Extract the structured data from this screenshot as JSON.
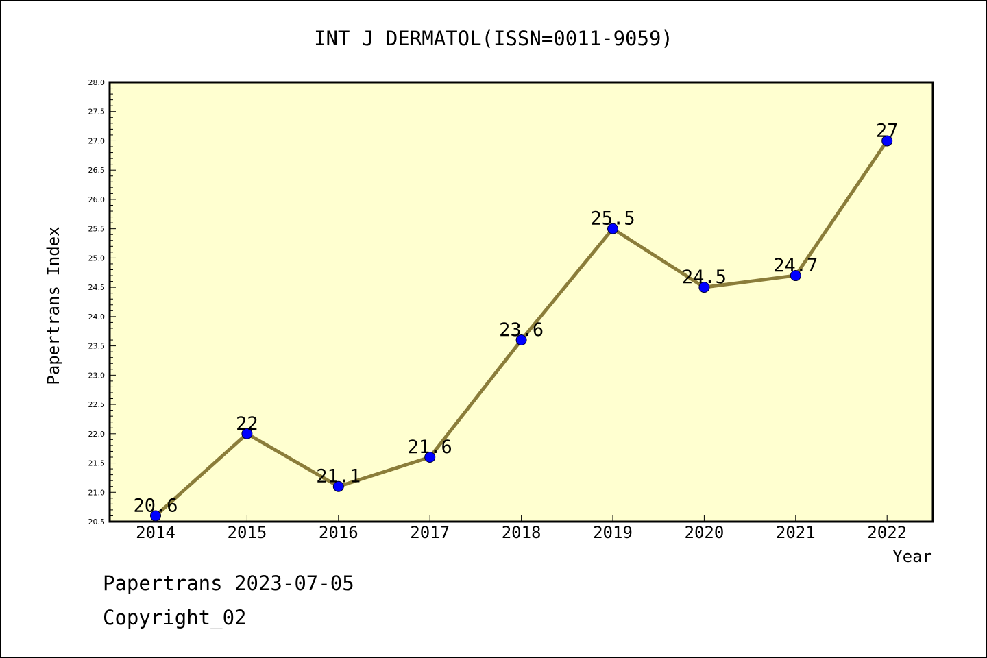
{
  "chart_data": {
    "type": "line",
    "title": "INT J DERMATOL(ISSN=0011-9059)",
    "xlabel": "Year",
    "ylabel": "Papertrans Index",
    "categories": [
      "2014",
      "2015",
      "2016",
      "2017",
      "2018",
      "2019",
      "2020",
      "2021",
      "2022"
    ],
    "values": [
      20.6,
      22,
      21.1,
      21.6,
      23.6,
      25.5,
      24.5,
      24.7,
      27
    ],
    "data_labels": [
      "20.6",
      "22",
      "21.1",
      "21.6",
      "23.6",
      "25.5",
      "24.5",
      "24.7",
      "27"
    ],
    "ylim": [
      20.5,
      28.0
    ],
    "yticks": [
      "20.5",
      "21.0",
      "21.5",
      "22.0",
      "22.5",
      "23.0",
      "23.5",
      "24.0",
      "24.5",
      "25.0",
      "25.5",
      "26.0",
      "26.5",
      "27.0",
      "27.5",
      "28.0"
    ],
    "grid": false,
    "legend": "none",
    "colors": {
      "line": "#8B7D3A",
      "marker": "#0000FF",
      "plot_background": "#FFFFD0"
    }
  },
  "footer": {
    "line1": "Papertrans 2023-07-05",
    "line2": "Copyright_02"
  }
}
